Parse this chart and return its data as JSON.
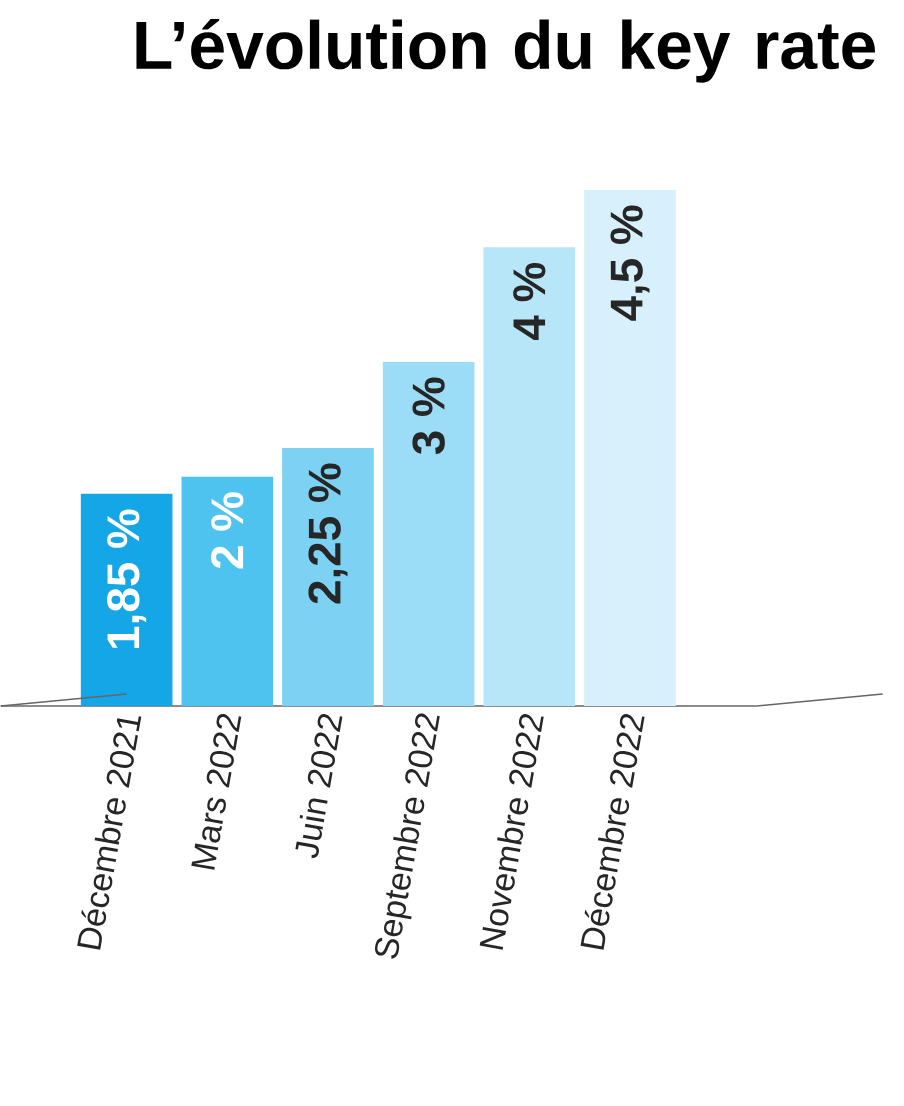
{
  "chart_data": {
    "type": "bar",
    "title": "L’évolution du key rate",
    "categories": [
      "Décembre 2021",
      "Mars 2022",
      "Juin 2022",
      "Septembre 2022",
      "Novembre 2022",
      "Décembre 2022"
    ],
    "values": [
      1.85,
      2,
      2.25,
      3,
      4,
      4.5
    ],
    "value_labels": [
      "1,85 %",
      "2 %",
      "2,25 %",
      "3 %",
      "4 %",
      "4,5 %"
    ],
    "colors": [
      "#14a6e6",
      "#4fc3f0",
      "#7dd2f4",
      "#9bdcf6",
      "#b8e6f9",
      "#d7f0fb"
    ]
  }
}
